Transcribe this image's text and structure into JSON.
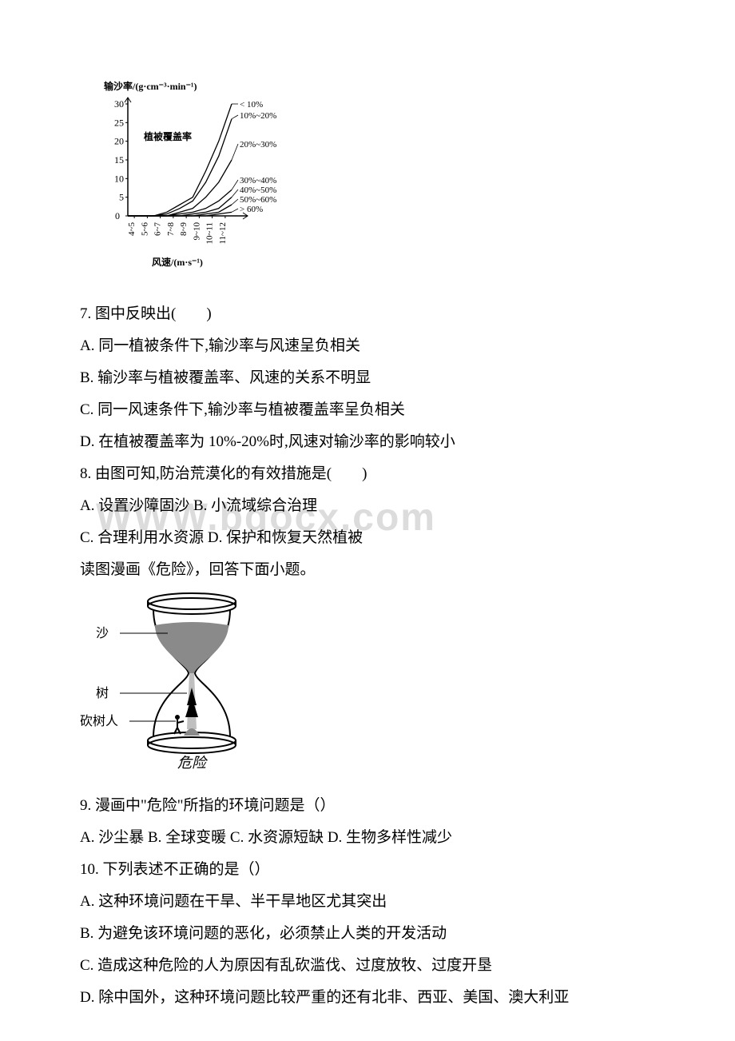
{
  "watermark": "WWW.bdocx.com",
  "chart1": {
    "y_axis_label": "输沙率/(g·cm⁻³·min⁻¹)",
    "x_axis_label": "风速/(m·s⁻¹)",
    "inner_label": "植被覆盖率",
    "y_ticks": [
      0,
      5,
      10,
      15,
      20,
      25,
      30
    ],
    "x_ticks": [
      "4~5",
      "5~6",
      "6~7",
      "7~8",
      "8~9",
      "9~10",
      "10~11",
      "11~12"
    ],
    "series_labels": [
      "< 10%",
      "10%~20%",
      "20%~30%",
      "30%~40%",
      "40%~50%",
      "50%~60%",
      "> 60%"
    ],
    "font_size": 12,
    "stroke": "#000000",
    "series": [
      [
        0,
        0,
        0,
        1,
        3,
        5,
        12,
        20,
        30
      ],
      [
        0,
        0,
        0,
        0.5,
        2,
        4,
        9,
        16,
        26
      ],
      [
        0,
        0,
        0,
        0,
        1,
        2,
        5,
        9,
        15
      ],
      [
        0,
        0,
        0,
        0,
        0.5,
        1,
        2,
        4,
        7
      ],
      [
        0,
        0,
        0,
        0,
        0,
        0.5,
        1,
        2,
        5
      ],
      [
        0,
        0,
        0,
        0,
        0,
        0,
        0.5,
        1,
        3
      ],
      [
        0,
        0,
        0,
        0,
        0,
        0,
        0,
        0.5,
        1
      ]
    ]
  },
  "q7": {
    "stem": "7. 图中反映出(　　)",
    "A": "A. 同一植被条件下,输沙率与风速呈负相关",
    "B": "B. 输沙率与植被覆盖率、风速的关系不明显",
    "C": "C. 同一风速条件下,输沙率与植被覆盖率呈负相关",
    "D": "D. 在植被覆盖率为 10%-20%时,风速对输沙率的影响较小"
  },
  "q8": {
    "stem": "8. 由图可知,防治荒漠化的有效措施是(　　)",
    "AB": "A. 设置沙障固沙 B. 小流域综合治理",
    "CD": "C. 合理利用水资源 D. 保护和恢复天然植被"
  },
  "bridge": "读图漫画《危险》，回答下面小题。",
  "hourglass": {
    "label_sand": "沙",
    "label_tree": "树",
    "label_logger": "砍树人",
    "caption": "危险",
    "stroke": "#000000",
    "font_size": 16
  },
  "q9": {
    "stem": "9. 漫画中\"危险\"所指的环境问题是（）",
    "opts": "A. 沙尘暴 B. 全球变暖 C. 水资源短缺 D. 生物多样性减少"
  },
  "q10": {
    "stem": "10. 下列表述不正确的是（）",
    "A": "A. 这种环境问题在干旱、半干旱地区尤其突出",
    "B": "B. 为避免该环境问题的恶化，必须禁止人类的开发活动",
    "C": "C. 造成这种危险的人为原因有乱砍滥伐、过度放牧、过度开垦",
    "D": "D. 除中国外，这种环境问题比较严重的还有北非、西亚、美国、澳大利亚"
  }
}
